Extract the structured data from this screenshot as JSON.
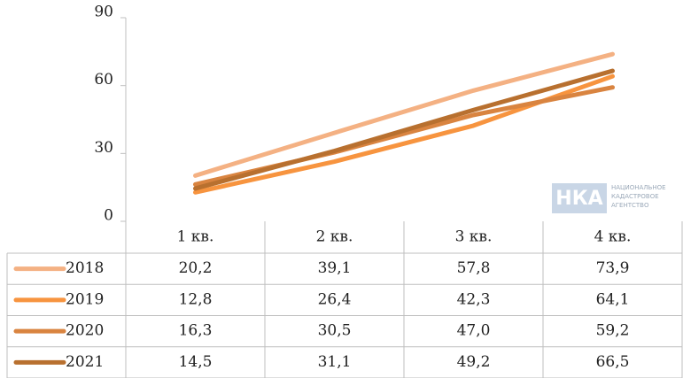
{
  "chart_data": {
    "type": "line",
    "categories": [
      "1 кв.",
      "2 кв.",
      "3 кв.",
      "4 кв."
    ],
    "series": [
      {
        "name": "2018",
        "color": "#f4b183",
        "values": [
          20.2,
          39.1,
          57.8,
          73.9
        ],
        "value_labels": [
          "20,2",
          "39,1",
          "57,8",
          "73,9"
        ]
      },
      {
        "name": "2019",
        "color": "#f7943f",
        "values": [
          12.8,
          26.4,
          42.3,
          64.1
        ],
        "value_labels": [
          "12,8",
          "26,4",
          "42,3",
          "64,1"
        ]
      },
      {
        "name": "2020",
        "color": "#d98440",
        "values": [
          16.3,
          30.5,
          47.0,
          59.2
        ],
        "value_labels": [
          "16,3",
          "30,5",
          "47,0",
          "59,2"
        ]
      },
      {
        "name": "2021",
        "color": "#b8702f",
        "values": [
          14.5,
          31.1,
          49.2,
          66.5
        ],
        "value_labels": [
          "14,5",
          "31,1",
          "49,2",
          "66,5"
        ]
      }
    ],
    "ylim": [
      0,
      90
    ],
    "yticks": [
      0,
      30,
      60,
      90
    ],
    "grid": false,
    "data_table": true,
    "logo": [
      "НАЦИОНАЛЬНОЕ",
      "КАДАСТРОВОЕ",
      "АГЕНТСТВО"
    ]
  }
}
